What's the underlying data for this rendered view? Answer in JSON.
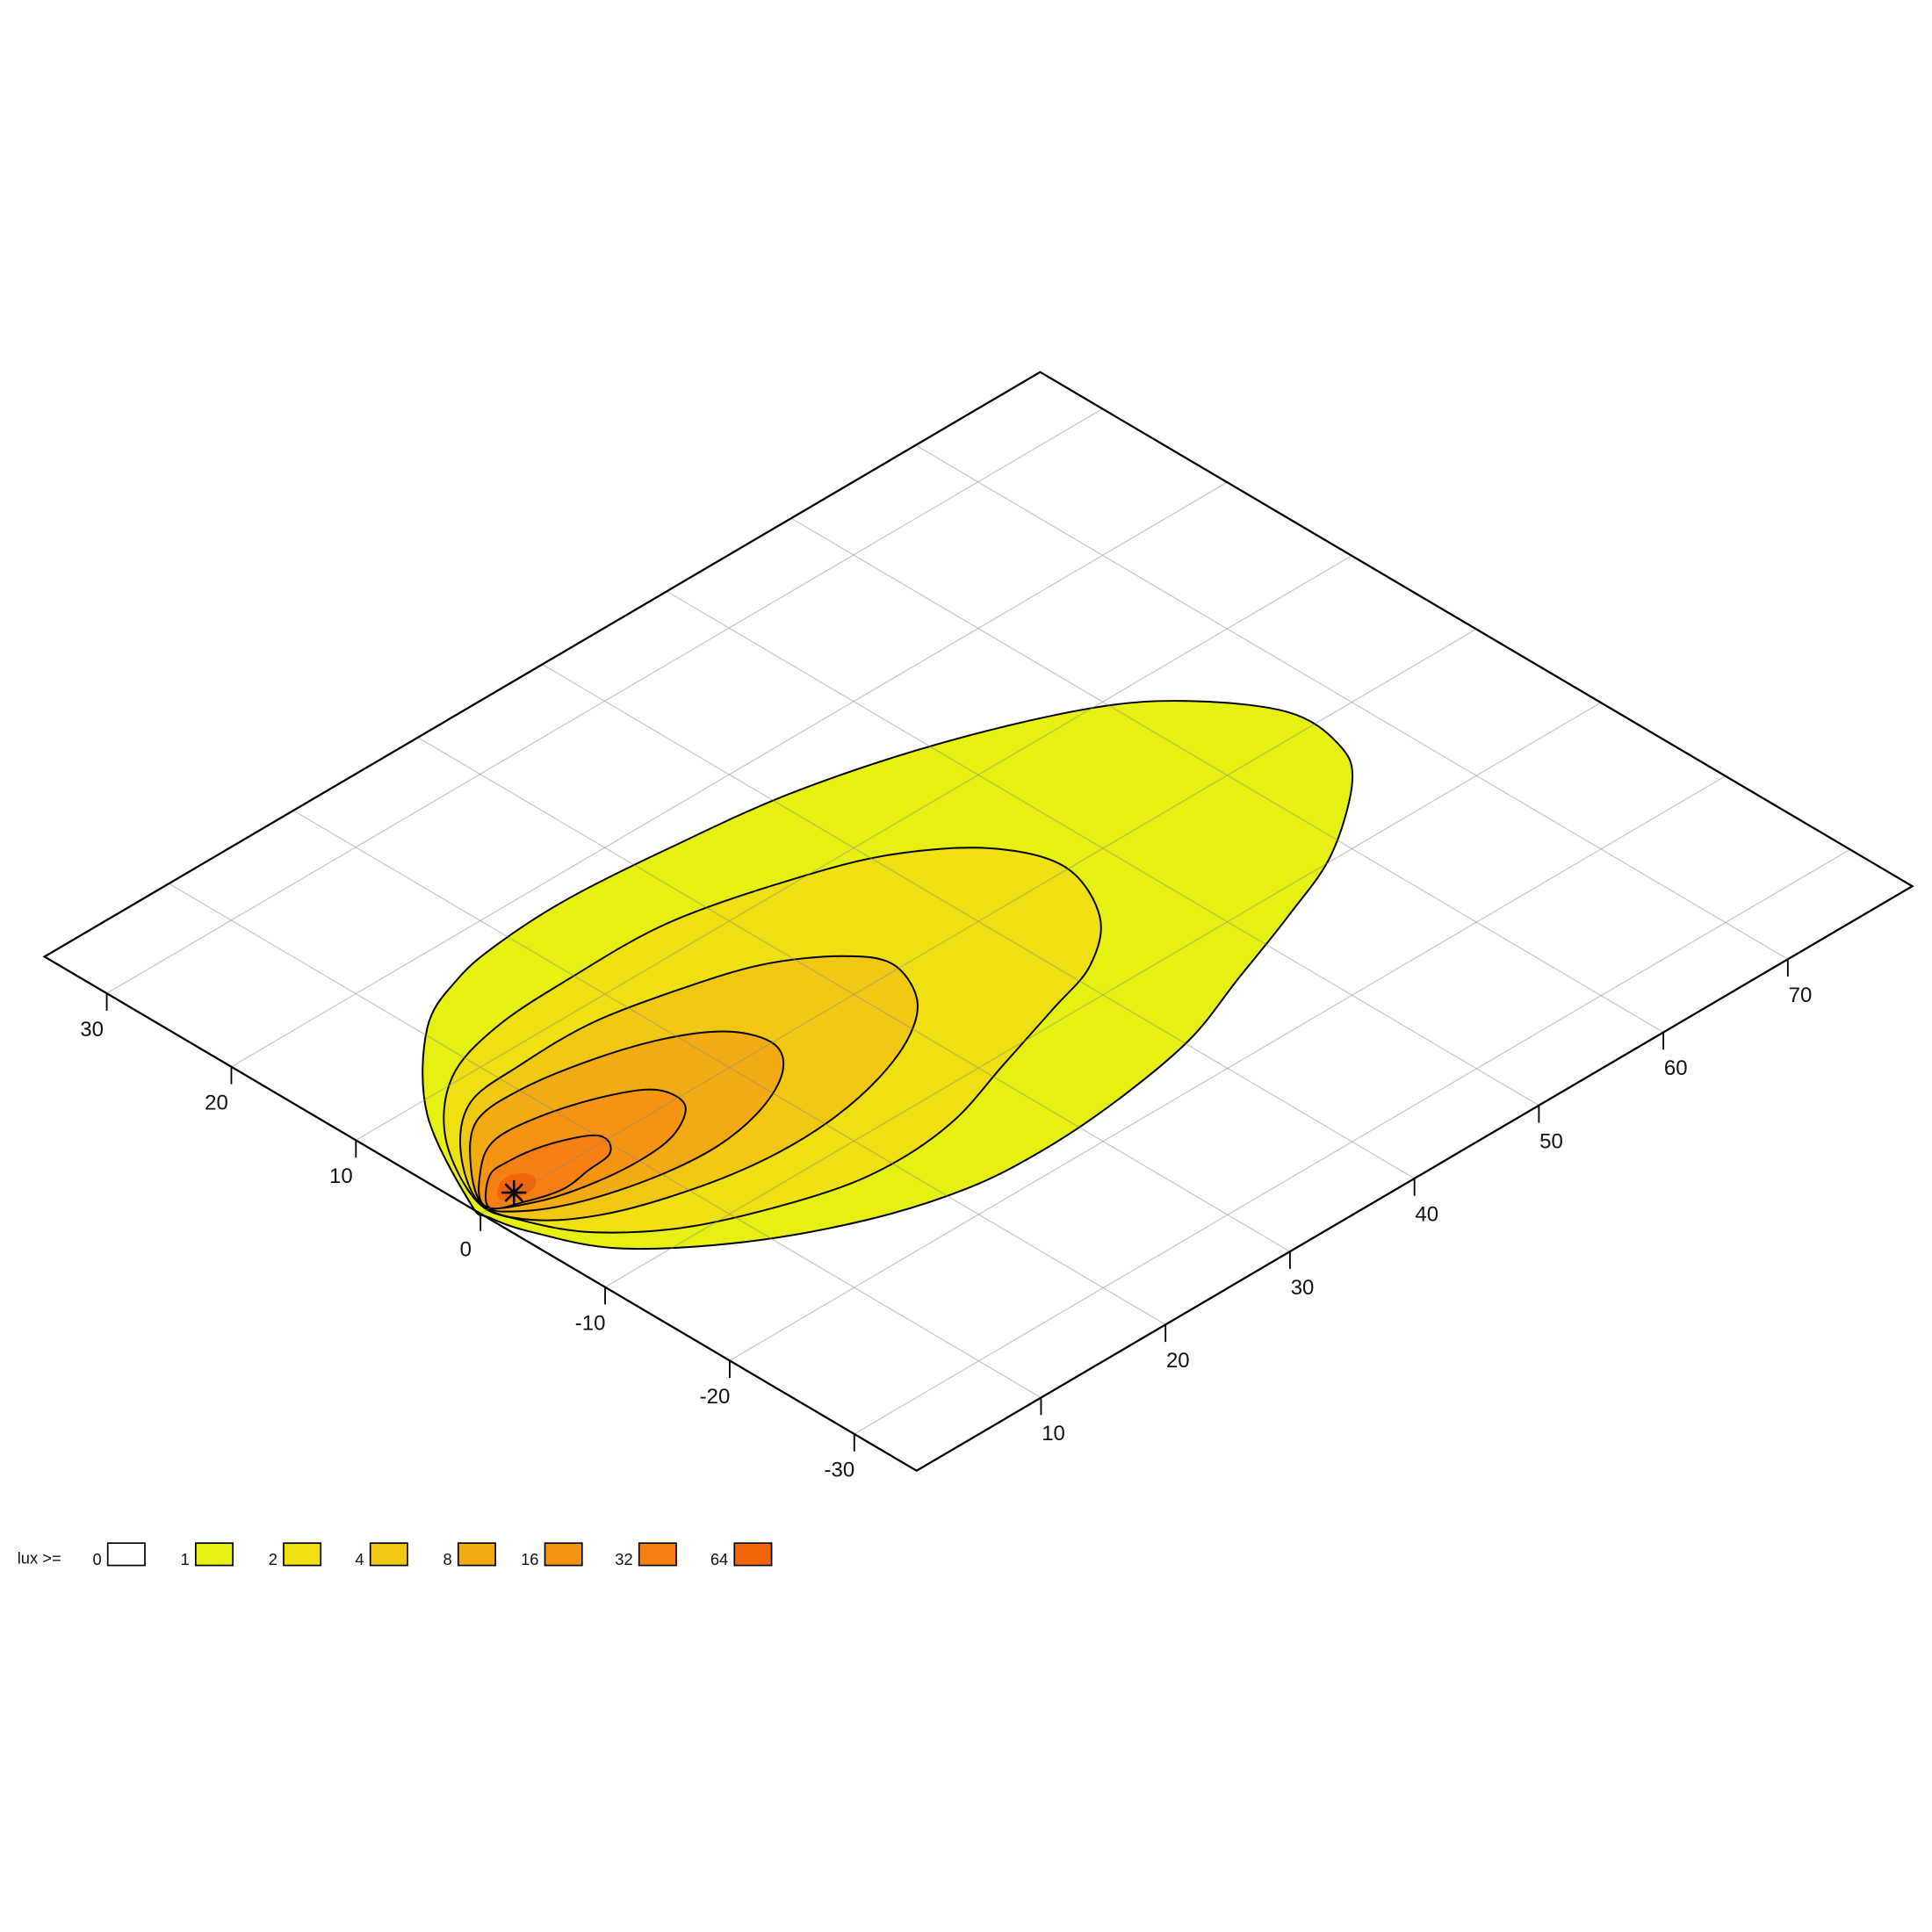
{
  "chart_data": {
    "type": "isolux",
    "legend_title": "lux >=",
    "levels": [
      0,
      1,
      2,
      4,
      8,
      16,
      32,
      64
    ],
    "colors": [
      "#ffffff",
      "#e6f012",
      "#eee012",
      "#f0c814",
      "#f3ab13",
      "#f59412",
      "#f57f10",
      "#f26508"
    ],
    "xlim": [
      -35,
      35
    ],
    "ylim": [
      0,
      80
    ],
    "xticks": [
      -30,
      -20,
      -10,
      0,
      10,
      20,
      30
    ],
    "yticks": [
      10,
      20,
      30,
      40,
      50,
      60,
      70
    ],
    "grid": true
  }
}
